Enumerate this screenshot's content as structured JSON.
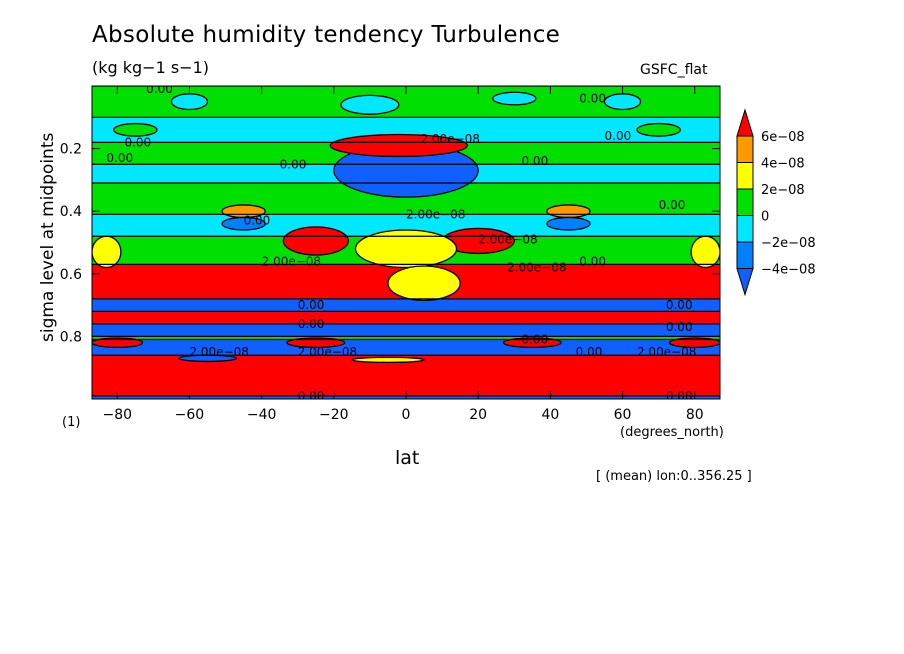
{
  "chart_data": {
    "type": "heatmap",
    "title": "Absolute humidity tendency Turbulence",
    "units": "(kg kg−1 s−1)",
    "source": "GSFC_flat",
    "xlabel": "lat",
    "xunits": "(degrees_north)",
    "ylabel": "sigma level at midpoints",
    "corner_label": "(1)",
    "note": "[ (mean) lon:0..356.25 ]",
    "xlim": [
      -87,
      87
    ],
    "ylim": [
      1.0,
      0.0
    ],
    "x_ticks": [
      -80,
      -60,
      -40,
      -20,
      0,
      20,
      40,
      60,
      80
    ],
    "x_tick_labels": [
      "−80",
      "−60",
      "−40",
      "−20",
      "0",
      "20",
      "40",
      "60",
      "80"
    ],
    "y_ticks": [
      0.2,
      0.4,
      0.6,
      0.8
    ],
    "y_tick_labels": [
      "0.2",
      "0.4",
      "0.6",
      "0.8"
    ],
    "colorbar": {
      "labels": [
        "6e−08",
        "4e−08",
        "2e−08",
        "0",
        "−2e−08",
        "−4e−08"
      ],
      "colors": [
        "#ff0000",
        "#ff9900",
        "#ffff00",
        "#00e000",
        "#00e8ff",
        "#0080ff",
        "#1060ff"
      ]
    },
    "bands": [
      {
        "y0": 0.0,
        "y1": 0.1,
        "color": "#00e000"
      },
      {
        "y0": 0.1,
        "y1": 0.18,
        "color": "#00e8ff"
      },
      {
        "y0": 0.18,
        "y1": 0.25,
        "color": "#00e000"
      },
      {
        "y0": 0.25,
        "y1": 0.31,
        "color": "#00e8ff"
      },
      {
        "y0": 0.31,
        "y1": 0.41,
        "color": "#00e000"
      },
      {
        "y0": 0.41,
        "y1": 0.48,
        "color": "#00e8ff"
      },
      {
        "y0": 0.48,
        "y1": 0.57,
        "color": "#00e000"
      },
      {
        "y0": 0.57,
        "y1": 0.68,
        "color": "#ff0000"
      },
      {
        "y0": 0.68,
        "y1": 0.72,
        "color": "#1060ff"
      },
      {
        "y0": 0.72,
        "y1": 0.76,
        "color": "#ff0000"
      },
      {
        "y0": 0.76,
        "y1": 0.8,
        "color": "#1060ff"
      },
      {
        "y0": 0.8,
        "y1": 0.81,
        "color": "#00e000"
      },
      {
        "y0": 0.81,
        "y1": 0.86,
        "color": "#1060ff"
      },
      {
        "y0": 0.86,
        "y1": 0.99,
        "color": "#ff0000"
      },
      {
        "y0": 0.99,
        "y1": 1.0,
        "color": "#1060ff"
      }
    ],
    "blobs": [
      {
        "lat": 0,
        "sigma": 0.27,
        "rlat": 20,
        "rsig": 0.085,
        "color": "#1060ff"
      },
      {
        "lat": -2,
        "sigma": 0.19,
        "rlat": 19,
        "rsig": 0.035,
        "color": "#ff0000"
      },
      {
        "lat": -25,
        "sigma": 0.495,
        "rlat": 9,
        "rsig": 0.045,
        "color": "#ff0000"
      },
      {
        "lat": 20,
        "sigma": 0.495,
        "rlat": 10,
        "rsig": 0.04,
        "color": "#ff0000"
      },
      {
        "lat": 0,
        "sigma": 0.52,
        "rlat": 14,
        "rsig": 0.06,
        "color": "#ffff00"
      },
      {
        "lat": 5,
        "sigma": 0.63,
        "rlat": 10,
        "rsig": 0.055,
        "color": "#ffff00"
      },
      {
        "lat": -45,
        "sigma": 0.4,
        "rlat": 6,
        "rsig": 0.02,
        "color": "#ff9900"
      },
      {
        "lat": 45,
        "sigma": 0.4,
        "rlat": 6,
        "rsig": 0.02,
        "color": "#ff9900"
      },
      {
        "lat": -45,
        "sigma": 0.44,
        "rlat": 6,
        "rsig": 0.02,
        "color": "#0080ff"
      },
      {
        "lat": 45,
        "sigma": 0.44,
        "rlat": 6,
        "rsig": 0.02,
        "color": "#0080ff"
      },
      {
        "lat": -83,
        "sigma": 0.53,
        "rlat": 4,
        "rsig": 0.05,
        "color": "#ffff00"
      },
      {
        "lat": 83,
        "sigma": 0.53,
        "rlat": 4,
        "rsig": 0.05,
        "color": "#ffff00"
      },
      {
        "lat": -80,
        "sigma": 0.82,
        "rlat": 7,
        "rsig": 0.015,
        "color": "#ff0000"
      },
      {
        "lat": -55,
        "sigma": 0.87,
        "rlat": 8,
        "rsig": 0.01,
        "color": "#1060ff"
      },
      {
        "lat": 80,
        "sigma": 0.82,
        "rlat": 7,
        "rsig": 0.015,
        "color": "#ff0000"
      },
      {
        "lat": 35,
        "sigma": 0.82,
        "rlat": 8,
        "rsig": 0.015,
        "color": "#ff0000"
      },
      {
        "lat": -25,
        "sigma": 0.82,
        "rlat": 8,
        "rsig": 0.015,
        "color": "#ff0000"
      },
      {
        "lat": -5,
        "sigma": 0.875,
        "rlat": 10,
        "rsig": 0.008,
        "color": "#ffff00"
      },
      {
        "lat": -60,
        "sigma": 0.05,
        "rlat": 5,
        "rsig": 0.025,
        "color": "#00e8ff"
      },
      {
        "lat": 60,
        "sigma": 0.05,
        "rlat": 5,
        "rsig": 0.025,
        "color": "#00e8ff"
      },
      {
        "lat": -10,
        "sigma": 0.06,
        "rlat": 8,
        "rsig": 0.03,
        "color": "#00e8ff"
      },
      {
        "lat": 30,
        "sigma": 0.04,
        "rlat": 6,
        "rsig": 0.02,
        "color": "#00e8ff"
      },
      {
        "lat": -75,
        "sigma": 0.14,
        "rlat": 6,
        "rsig": 0.02,
        "color": "#00e000"
      },
      {
        "lat": 70,
        "sigma": 0.14,
        "rlat": 6,
        "rsig": 0.02,
        "color": "#00e000"
      }
    ],
    "contour_labels": [
      {
        "lat": -72,
        "sigma": 0.01,
        "text": "0.00"
      },
      {
        "lat": 48,
        "sigma": 0.04,
        "text": "0.00"
      },
      {
        "lat": -78,
        "sigma": 0.18,
        "text": "0.00"
      },
      {
        "lat": -83,
        "sigma": 0.23,
        "text": "0.00"
      },
      {
        "lat": 55,
        "sigma": 0.16,
        "text": "0.00"
      },
      {
        "lat": -35,
        "sigma": 0.25,
        "text": "0.00"
      },
      {
        "lat": 4,
        "sigma": 0.17,
        "text": "2.00e−08"
      },
      {
        "lat": 32,
        "sigma": 0.24,
        "text": "0.00"
      },
      {
        "lat": 70,
        "sigma": 0.38,
        "text": "0.00"
      },
      {
        "lat": 0,
        "sigma": 0.41,
        "text": "2.00e−08"
      },
      {
        "lat": 20,
        "sigma": 0.49,
        "text": "2.00e−08"
      },
      {
        "lat": -45,
        "sigma": 0.43,
        "text": "0.00"
      },
      {
        "lat": -40,
        "sigma": 0.56,
        "text": "2.00e−08"
      },
      {
        "lat": 28,
        "sigma": 0.58,
        "text": "2.00e−08"
      },
      {
        "lat": 48,
        "sigma": 0.56,
        "text": "0.00"
      },
      {
        "lat": -30,
        "sigma": 0.7,
        "text": "0.00"
      },
      {
        "lat": 72,
        "sigma": 0.7,
        "text": "0.00"
      },
      {
        "lat": -30,
        "sigma": 0.76,
        "text": "0.00"
      },
      {
        "lat": 72,
        "sigma": 0.77,
        "text": "0.00"
      },
      {
        "lat": 32,
        "sigma": 0.81,
        "text": "0.00"
      },
      {
        "lat": 47,
        "sigma": 0.85,
        "text": "0.00"
      },
      {
        "lat": 64,
        "sigma": 0.85,
        "text": "2.00e−08"
      },
      {
        "lat": -60,
        "sigma": 0.85,
        "text": "2.00e−08"
      },
      {
        "lat": -30,
        "sigma": 0.85,
        "text": "2.00e−08"
      },
      {
        "lat": -30,
        "sigma": 0.99,
        "text": "0.00"
      },
      {
        "lat": 72,
        "sigma": 0.99,
        "text": "0.00"
      }
    ]
  }
}
